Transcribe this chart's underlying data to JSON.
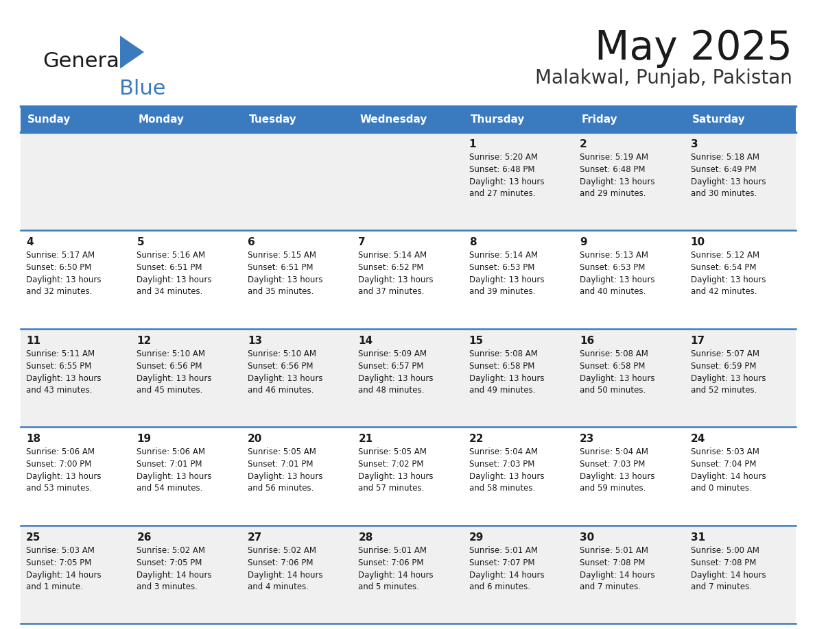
{
  "title": "May 2025",
  "subtitle": "Malakwal, Punjab, Pakistan",
  "header_bg": "#3a7abf",
  "header_text": "#ffffff",
  "row_bg_odd": "#f0f0f0",
  "row_bg_even": "#ffffff",
  "border_color": "#3a7abf",
  "day_headers": [
    "Sunday",
    "Monday",
    "Tuesday",
    "Wednesday",
    "Thursday",
    "Friday",
    "Saturday"
  ],
  "days": [
    {
      "day": 1,
      "col": 4,
      "row": 0,
      "sunrise": "5:20 AM",
      "sunset": "6:48 PM",
      "daylight_line1": "Daylight: 13 hours",
      "daylight_line2": "and 27 minutes."
    },
    {
      "day": 2,
      "col": 5,
      "row": 0,
      "sunrise": "5:19 AM",
      "sunset": "6:48 PM",
      "daylight_line1": "Daylight: 13 hours",
      "daylight_line2": "and 29 minutes."
    },
    {
      "day": 3,
      "col": 6,
      "row": 0,
      "sunrise": "5:18 AM",
      "sunset": "6:49 PM",
      "daylight_line1": "Daylight: 13 hours",
      "daylight_line2": "and 30 minutes."
    },
    {
      "day": 4,
      "col": 0,
      "row": 1,
      "sunrise": "5:17 AM",
      "sunset": "6:50 PM",
      "daylight_line1": "Daylight: 13 hours",
      "daylight_line2": "and 32 minutes."
    },
    {
      "day": 5,
      "col": 1,
      "row": 1,
      "sunrise": "5:16 AM",
      "sunset": "6:51 PM",
      "daylight_line1": "Daylight: 13 hours",
      "daylight_line2": "and 34 minutes."
    },
    {
      "day": 6,
      "col": 2,
      "row": 1,
      "sunrise": "5:15 AM",
      "sunset": "6:51 PM",
      "daylight_line1": "Daylight: 13 hours",
      "daylight_line2": "and 35 minutes."
    },
    {
      "day": 7,
      "col": 3,
      "row": 1,
      "sunrise": "5:14 AM",
      "sunset": "6:52 PM",
      "daylight_line1": "Daylight: 13 hours",
      "daylight_line2": "and 37 minutes."
    },
    {
      "day": 8,
      "col": 4,
      "row": 1,
      "sunrise": "5:14 AM",
      "sunset": "6:53 PM",
      "daylight_line1": "Daylight: 13 hours",
      "daylight_line2": "and 39 minutes."
    },
    {
      "day": 9,
      "col": 5,
      "row": 1,
      "sunrise": "5:13 AM",
      "sunset": "6:53 PM",
      "daylight_line1": "Daylight: 13 hours",
      "daylight_line2": "and 40 minutes."
    },
    {
      "day": 10,
      "col": 6,
      "row": 1,
      "sunrise": "5:12 AM",
      "sunset": "6:54 PM",
      "daylight_line1": "Daylight: 13 hours",
      "daylight_line2": "and 42 minutes."
    },
    {
      "day": 11,
      "col": 0,
      "row": 2,
      "sunrise": "5:11 AM",
      "sunset": "6:55 PM",
      "daylight_line1": "Daylight: 13 hours",
      "daylight_line2": "and 43 minutes."
    },
    {
      "day": 12,
      "col": 1,
      "row": 2,
      "sunrise": "5:10 AM",
      "sunset": "6:56 PM",
      "daylight_line1": "Daylight: 13 hours",
      "daylight_line2": "and 45 minutes."
    },
    {
      "day": 13,
      "col": 2,
      "row": 2,
      "sunrise": "5:10 AM",
      "sunset": "6:56 PM",
      "daylight_line1": "Daylight: 13 hours",
      "daylight_line2": "and 46 minutes."
    },
    {
      "day": 14,
      "col": 3,
      "row": 2,
      "sunrise": "5:09 AM",
      "sunset": "6:57 PM",
      "daylight_line1": "Daylight: 13 hours",
      "daylight_line2": "and 48 minutes."
    },
    {
      "day": 15,
      "col": 4,
      "row": 2,
      "sunrise": "5:08 AM",
      "sunset": "6:58 PM",
      "daylight_line1": "Daylight: 13 hours",
      "daylight_line2": "and 49 minutes."
    },
    {
      "day": 16,
      "col": 5,
      "row": 2,
      "sunrise": "5:08 AM",
      "sunset": "6:58 PM",
      "daylight_line1": "Daylight: 13 hours",
      "daylight_line2": "and 50 minutes."
    },
    {
      "day": 17,
      "col": 6,
      "row": 2,
      "sunrise": "5:07 AM",
      "sunset": "6:59 PM",
      "daylight_line1": "Daylight: 13 hours",
      "daylight_line2": "and 52 minutes."
    },
    {
      "day": 18,
      "col": 0,
      "row": 3,
      "sunrise": "5:06 AM",
      "sunset": "7:00 PM",
      "daylight_line1": "Daylight: 13 hours",
      "daylight_line2": "and 53 minutes."
    },
    {
      "day": 19,
      "col": 1,
      "row": 3,
      "sunrise": "5:06 AM",
      "sunset": "7:01 PM",
      "daylight_line1": "Daylight: 13 hours",
      "daylight_line2": "and 54 minutes."
    },
    {
      "day": 20,
      "col": 2,
      "row": 3,
      "sunrise": "5:05 AM",
      "sunset": "7:01 PM",
      "daylight_line1": "Daylight: 13 hours",
      "daylight_line2": "and 56 minutes."
    },
    {
      "day": 21,
      "col": 3,
      "row": 3,
      "sunrise": "5:05 AM",
      "sunset": "7:02 PM",
      "daylight_line1": "Daylight: 13 hours",
      "daylight_line2": "and 57 minutes."
    },
    {
      "day": 22,
      "col": 4,
      "row": 3,
      "sunrise": "5:04 AM",
      "sunset": "7:03 PM",
      "daylight_line1": "Daylight: 13 hours",
      "daylight_line2": "and 58 minutes."
    },
    {
      "day": 23,
      "col": 5,
      "row": 3,
      "sunrise": "5:04 AM",
      "sunset": "7:03 PM",
      "daylight_line1": "Daylight: 13 hours",
      "daylight_line2": "and 59 minutes."
    },
    {
      "day": 24,
      "col": 6,
      "row": 3,
      "sunrise": "5:03 AM",
      "sunset": "7:04 PM",
      "daylight_line1": "Daylight: 14 hours",
      "daylight_line2": "and 0 minutes."
    },
    {
      "day": 25,
      "col": 0,
      "row": 4,
      "sunrise": "5:03 AM",
      "sunset": "7:05 PM",
      "daylight_line1": "Daylight: 14 hours",
      "daylight_line2": "and 1 minute."
    },
    {
      "day": 26,
      "col": 1,
      "row": 4,
      "sunrise": "5:02 AM",
      "sunset": "7:05 PM",
      "daylight_line1": "Daylight: 14 hours",
      "daylight_line2": "and 3 minutes."
    },
    {
      "day": 27,
      "col": 2,
      "row": 4,
      "sunrise": "5:02 AM",
      "sunset": "7:06 PM",
      "daylight_line1": "Daylight: 14 hours",
      "daylight_line2": "and 4 minutes."
    },
    {
      "day": 28,
      "col": 3,
      "row": 4,
      "sunrise": "5:01 AM",
      "sunset": "7:06 PM",
      "daylight_line1": "Daylight: 14 hours",
      "daylight_line2": "and 5 minutes."
    },
    {
      "day": 29,
      "col": 4,
      "row": 4,
      "sunrise": "5:01 AM",
      "sunset": "7:07 PM",
      "daylight_line1": "Daylight: 14 hours",
      "daylight_line2": "and 6 minutes."
    },
    {
      "day": 30,
      "col": 5,
      "row": 4,
      "sunrise": "5:01 AM",
      "sunset": "7:08 PM",
      "daylight_line1": "Daylight: 14 hours",
      "daylight_line2": "and 7 minutes."
    },
    {
      "day": 31,
      "col": 6,
      "row": 4,
      "sunrise": "5:00 AM",
      "sunset": "7:08 PM",
      "daylight_line1": "Daylight: 14 hours",
      "daylight_line2": "and 7 minutes."
    }
  ],
  "num_rows": 5,
  "num_cols": 7
}
